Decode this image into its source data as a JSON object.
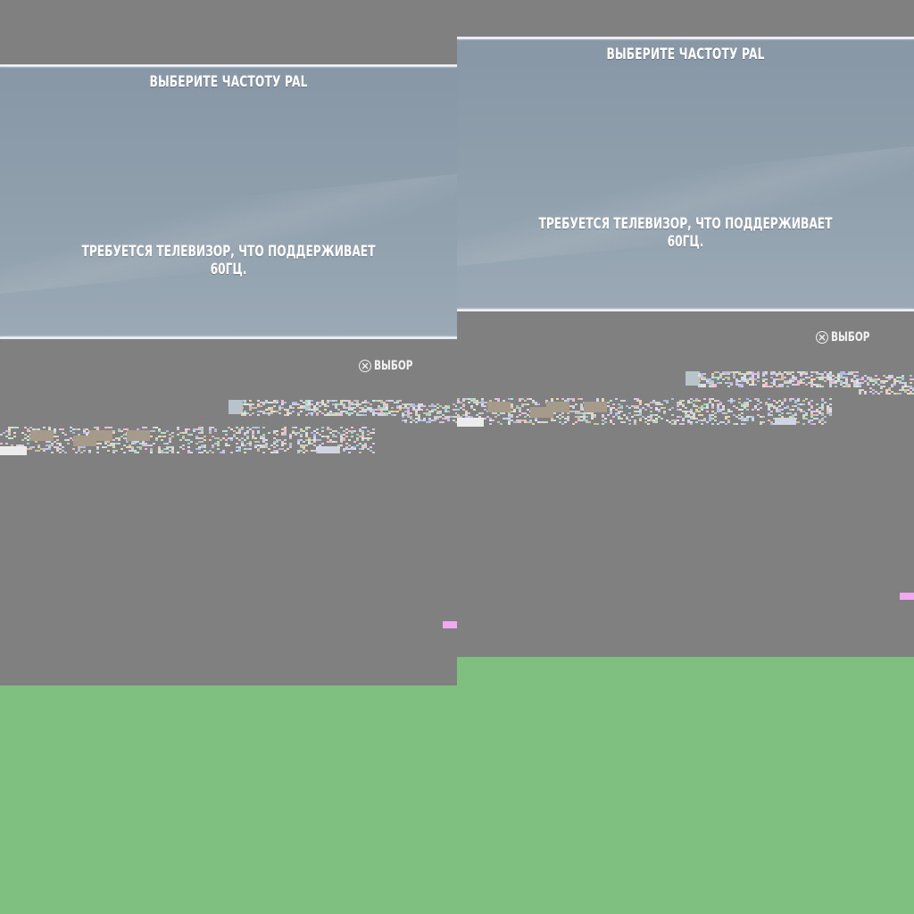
{
  "screen_left": {
    "dialog": {
      "title": "ВЫБЕРИТЕ ЧАСТОТУ PAL",
      "message": "ТРЕБУЕТСЯ ТЕЛЕВИЗОР, ЧТО ПОДДЕРЖИВАЕТ 60ГЦ."
    },
    "hint": {
      "button_icon": "cross-button-icon",
      "label": "ВЫБОР"
    }
  },
  "screen_right": {
    "dialog": {
      "title": "ВЫБЕРИТЕ ЧАСТОТУ PAL",
      "message": "ТРЕБУЕТСЯ ТЕЛЕВИЗОР, ЧТО ПОДДЕРЖИВАЕТ 60ГЦ."
    },
    "hint": {
      "button_icon": "cross-button-icon",
      "label": "ВЫБОР"
    }
  },
  "colors": {
    "background_fill": "#7fbf7f",
    "screen_gray": "#808080",
    "dialog_blue": "#8e9eab",
    "text": "#ffffff"
  }
}
